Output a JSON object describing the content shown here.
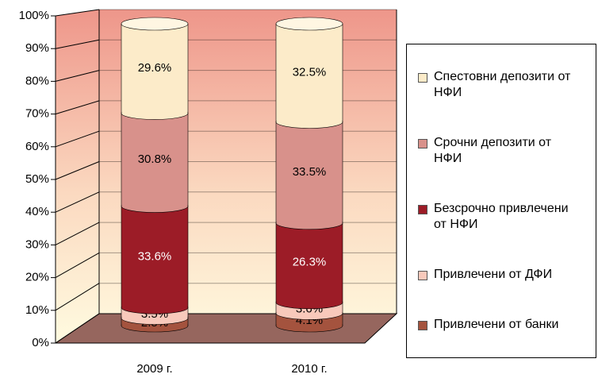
{
  "chart_data": {
    "type": "bar3d_stacked",
    "categories": [
      "2009 г.",
      "2010 г."
    ],
    "series": [
      {
        "name": "Привлечени от банки",
        "color": "#a4533e",
        "values": [
          2.5,
          4.1
        ],
        "value_labels": [
          "2.5%",
          "4.1%"
        ]
      },
      {
        "name": "Привлечени от ДФИ",
        "color": "#f8c9bb",
        "values": [
          3.5,
          3.6
        ],
        "value_labels": [
          "3.5%",
          "3.6%"
        ]
      },
      {
        "name": "Безсрочно привлечени от НФИ",
        "color": "#9c1c27",
        "values": [
          33.6,
          26.3
        ],
        "value_labels": [
          "33.6%",
          "26.3%"
        ]
      },
      {
        "name": "Срочни депозити от НФИ",
        "color": "#d8918b",
        "values": [
          30.8,
          33.5
        ],
        "value_labels": [
          "30.8%",
          "33.5%"
        ]
      },
      {
        "name": "Спестовни депозити от НФИ",
        "color": "#fcebc9",
        "values": [
          29.6,
          32.5
        ],
        "value_labels": [
          "29.6%",
          "32.5%"
        ]
      }
    ],
    "ylim": [
      0,
      100
    ],
    "yticks": [
      {
        "value": 0,
        "label": "0%"
      },
      {
        "value": 10,
        "label": "10%"
      },
      {
        "value": 20,
        "label": "20%"
      },
      {
        "value": 30,
        "label": "30%"
      },
      {
        "value": 40,
        "label": "40%"
      },
      {
        "value": 50,
        "label": "50%"
      },
      {
        "value": 60,
        "label": "60%"
      },
      {
        "value": 70,
        "label": "70%"
      },
      {
        "value": 80,
        "label": "80%"
      },
      {
        "value": 90,
        "label": "90%"
      },
      {
        "value": 100,
        "label": "100%"
      }
    ],
    "grid": true
  }
}
